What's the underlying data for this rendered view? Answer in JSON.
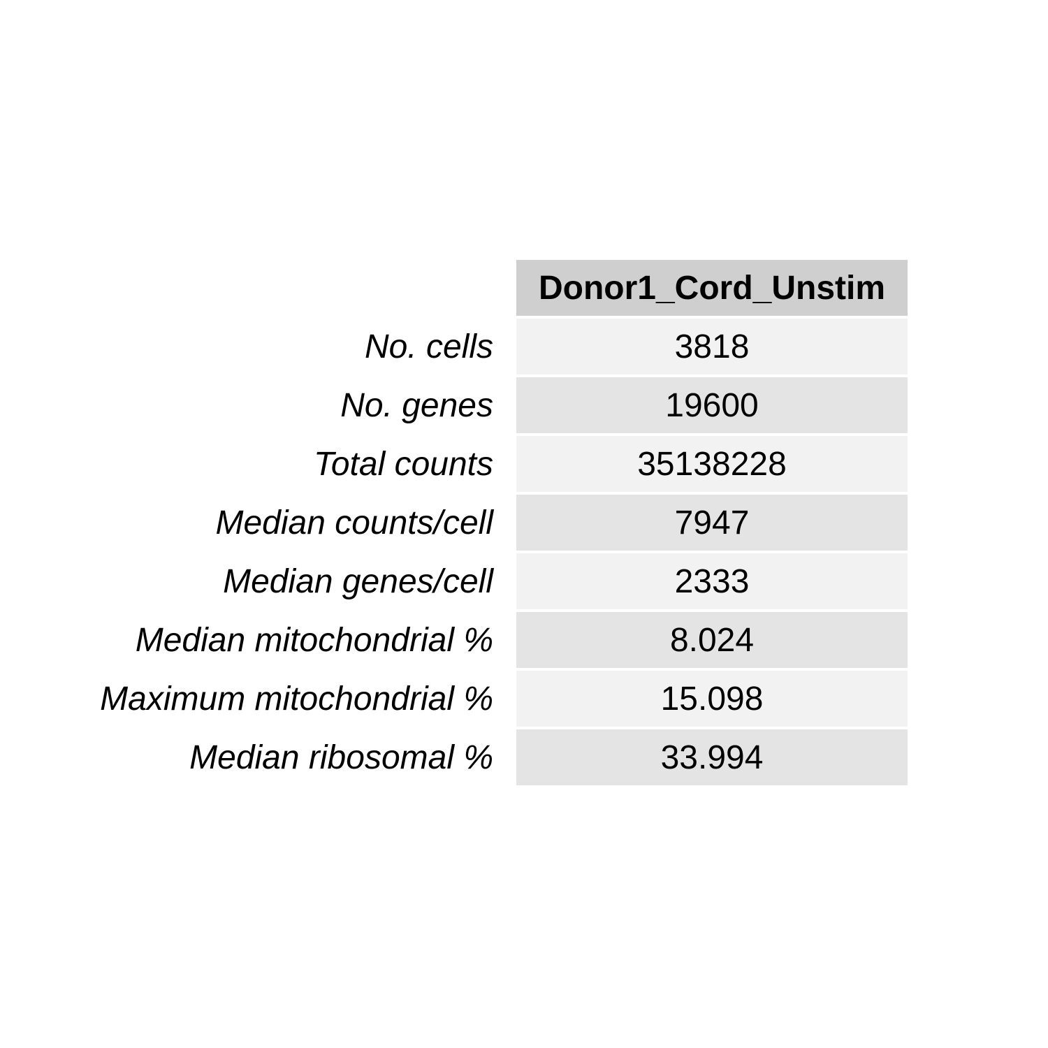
{
  "chart_data": {
    "type": "table",
    "columns": [
      "Donor1_Cord_Unstim"
    ],
    "rows": [
      {
        "label": "No. cells",
        "value": "3818"
      },
      {
        "label": "No. genes",
        "value": "19600"
      },
      {
        "label": "Total counts",
        "value": "35138228"
      },
      {
        "label": "Median counts/cell",
        "value": "7947"
      },
      {
        "label": "Median genes/cell",
        "value": "2333"
      },
      {
        "label": "Median mitochondrial %",
        "value": "8.024"
      },
      {
        "label": "Maximum mitochondrial %",
        "value": "15.098"
      },
      {
        "label": "Median ribosomal %",
        "value": "33.994"
      }
    ],
    "colors": {
      "header_fill": "#cfcfcf",
      "row_fill_light": "#f2f2f2",
      "row_fill_dark": "#e4e4e4"
    }
  }
}
